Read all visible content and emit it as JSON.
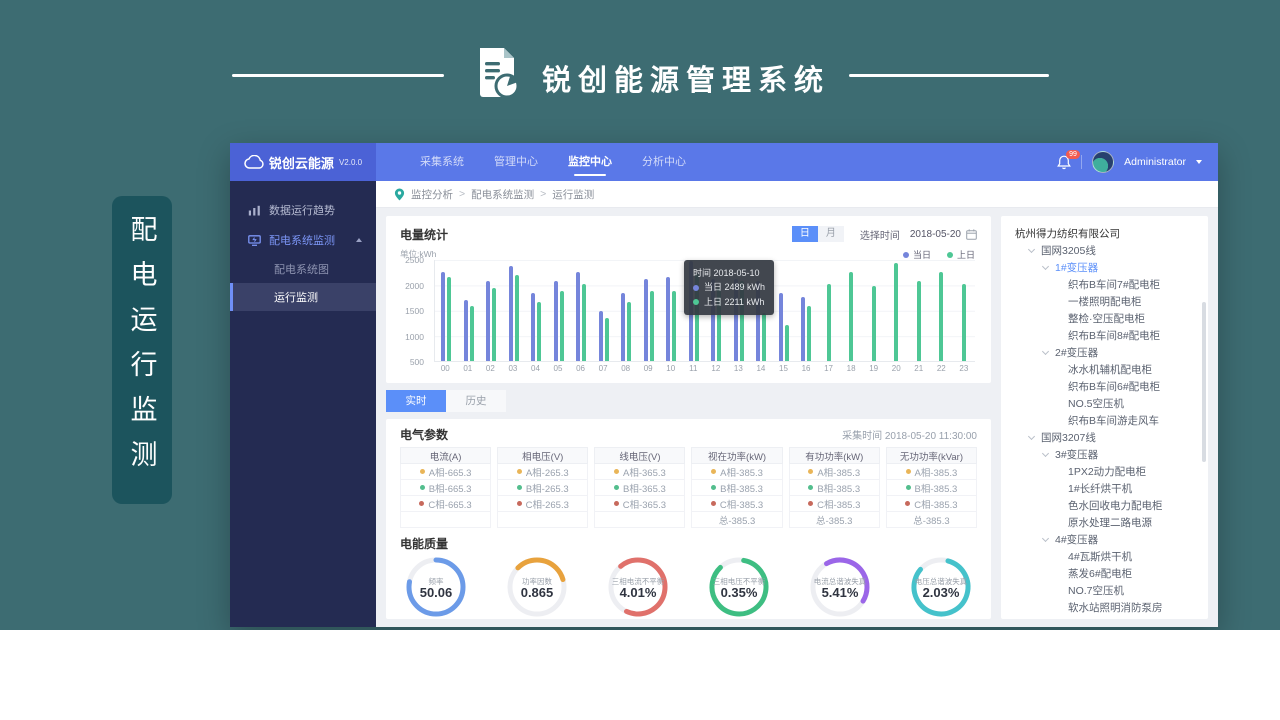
{
  "banner": {
    "title": "锐创能源管理系统",
    "side_badge": "配电运行监测"
  },
  "navbar": {
    "logo_text": "锐创云能源",
    "version": "V2.0.0",
    "menu": [
      {
        "label": "采集系统",
        "active": false
      },
      {
        "label": "管理中心",
        "active": false
      },
      {
        "label": "监控中心",
        "active": true
      },
      {
        "label": "分析中心",
        "active": false
      }
    ],
    "notification_count": "99",
    "user": "Administrator"
  },
  "sidebar": {
    "items": [
      {
        "label": "数据运行趋势",
        "type": "item",
        "icon": "trend-chart-icon"
      },
      {
        "label": "配电系统监测",
        "type": "item",
        "icon": "distribution-icon",
        "accent": true,
        "expanded": true
      },
      {
        "label": "配电系统图",
        "type": "sub"
      },
      {
        "label": "运行监测",
        "type": "sub",
        "active": true
      }
    ]
  },
  "breadcrumb": {
    "separator": ">",
    "items": [
      "监控分析",
      "配电系统监测",
      "运行监测"
    ]
  },
  "chart_card": {
    "title": "电量统计",
    "toggles": [
      {
        "label": "日",
        "active": true
      },
      {
        "label": "月",
        "active": false
      }
    ],
    "date_label": "选择时间",
    "date": "2018-05-20",
    "unit_label": "单位:kWh"
  },
  "chart_data": {
    "type": "bar",
    "title": "电量统计",
    "x": [
      "00",
      "01",
      "02",
      "03",
      "04",
      "05",
      "06",
      "07",
      "08",
      "09",
      "10",
      "11",
      "12",
      "13",
      "14",
      "15",
      "16",
      "17",
      "18",
      "19",
      "20",
      "21",
      "22",
      "23"
    ],
    "y_ticks": [
      2500,
      2000,
      1500,
      1000,
      500
    ],
    "ylim": [
      0,
      2500
    ],
    "unit": "kWh",
    "legend_position": "top-right",
    "grid": true,
    "series": [
      {
        "name": "当日",
        "color": "#7585db",
        "values": [
          2250,
          1650,
          2050,
          2400,
          1800,
          2050,
          2250,
          1400,
          1800,
          2100,
          2150,
          2489,
          2100,
          2100,
          2050,
          1800,
          1700,
          null,
          null,
          null,
          null,
          null,
          null,
          null
        ]
      },
      {
        "name": "上日",
        "color": "#4ec795",
        "values": [
          2150,
          1500,
          1900,
          2200,
          1600,
          1850,
          2000,
          1250,
          1600,
          1850,
          1850,
          2211,
          1900,
          2050,
          1350,
          1100,
          1500,
          2000,
          2250,
          1950,
          2450,
          2050,
          2250,
          2000
        ]
      }
    ],
    "tooltip": {
      "time_label": "时间",
      "time": "2018-05-10",
      "rows": [
        {
          "label": "当日",
          "value": "2489 kWh"
        },
        {
          "label": "上日",
          "value": "2211 kWh"
        }
      ]
    }
  },
  "tabs": [
    {
      "label": "实时",
      "active": true
    },
    {
      "label": "历史",
      "active": false
    }
  ],
  "params": {
    "title": "电气参数",
    "collect_time_label": "采集时间",
    "collect_time": "2018-05-20 11:30:00",
    "dot_colors": [
      "#e9b558",
      "#53be8d",
      "#c7695c",
      ""
    ],
    "columns": [
      {
        "header": "电流(A)",
        "rows": [
          "A相-665.3",
          "B相-665.3",
          "C相-665.3",
          ""
        ]
      },
      {
        "header": "相电压(V)",
        "rows": [
          "A相-265.3",
          "B相-265.3",
          "C相-265.3",
          ""
        ]
      },
      {
        "header": "线电压(V)",
        "rows": [
          "A相-365.3",
          "B相-365.3",
          "C相-365.3",
          ""
        ]
      },
      {
        "header": "视在功率(kW)",
        "rows": [
          "A相-385.3",
          "B相-385.3",
          "C相-385.3",
          "总-385.3"
        ]
      },
      {
        "header": "有功功率(kW)",
        "rows": [
          "A相-385.3",
          "B相-385.3",
          "C相-385.3",
          "总-385.3"
        ]
      },
      {
        "header": "无功功率(kVar)",
        "rows": [
          "A相-385.3",
          "B相-385.3",
          "C相-385.3",
          "总-385.3"
        ]
      }
    ]
  },
  "quality": {
    "title": "电能质量",
    "gauges": [
      {
        "label": "频率",
        "value": "50.06",
        "color": "#6c9be8",
        "pct": 0.78,
        "start": -90
      },
      {
        "label": "功率因数",
        "value": "0.865",
        "color": "#e8a23d",
        "pct": 0.33,
        "start": -135
      },
      {
        "label": "三相电流不平衡",
        "value": "4.01%",
        "color": "#e0716b",
        "pct": 0.68,
        "start": -130
      },
      {
        "label": "三相电压不平衡",
        "value": "0.35%",
        "color": "#3ebe82",
        "pct": 0.85,
        "start": -80
      },
      {
        "label": "电流总谐波失真",
        "value": "5.41%",
        "color": "#9b66e8",
        "pct": 0.42,
        "start": -120
      },
      {
        "label": "电压总谐波失真",
        "value": "2.03%",
        "color": "#45c2cb",
        "pct": 0.82,
        "start": -75
      }
    ]
  },
  "tree": {
    "items": [
      {
        "label": "杭州得力纺织有限公司",
        "level": 0,
        "caret": false,
        "root": true
      },
      {
        "label": "国网3205线",
        "level": 1,
        "caret": true
      },
      {
        "label": "1#变压器",
        "level": 2,
        "caret": true,
        "selected": true
      },
      {
        "label": "织布B车间7#配电柜",
        "level": 3
      },
      {
        "label": "一楼照明配电柜",
        "level": 3
      },
      {
        "label": "整检·空压配电柜",
        "level": 3
      },
      {
        "label": "织布B车间8#配电柜",
        "level": 3
      },
      {
        "label": "2#变压器",
        "level": 2,
        "caret": true
      },
      {
        "label": "冰水机辅机配电柜",
        "level": 3
      },
      {
        "label": "织布B车间6#配电柜",
        "level": 3
      },
      {
        "label": "NO.5空压机",
        "level": 3
      },
      {
        "label": "织布B车间游走风车",
        "level": 3
      },
      {
        "label": "国网3207线",
        "level": 1,
        "caret": true
      },
      {
        "label": "3#变压器",
        "level": 2,
        "caret": true
      },
      {
        "label": "1PX2动力配电柜",
        "level": 3
      },
      {
        "label": "1#长纤烘干机",
        "level": 3
      },
      {
        "label": "色水回收电力配电柜",
        "level": 3
      },
      {
        "label": "原水处理二路电源",
        "level": 3
      },
      {
        "label": "4#变压器",
        "level": 2,
        "caret": true
      },
      {
        "label": "4#瓦斯烘干机",
        "level": 3
      },
      {
        "label": "蒸发6#配电柜",
        "level": 3
      },
      {
        "label": "NO.7空压机",
        "level": 3
      },
      {
        "label": "软水站照明消防泵房",
        "level": 3
      }
    ]
  }
}
